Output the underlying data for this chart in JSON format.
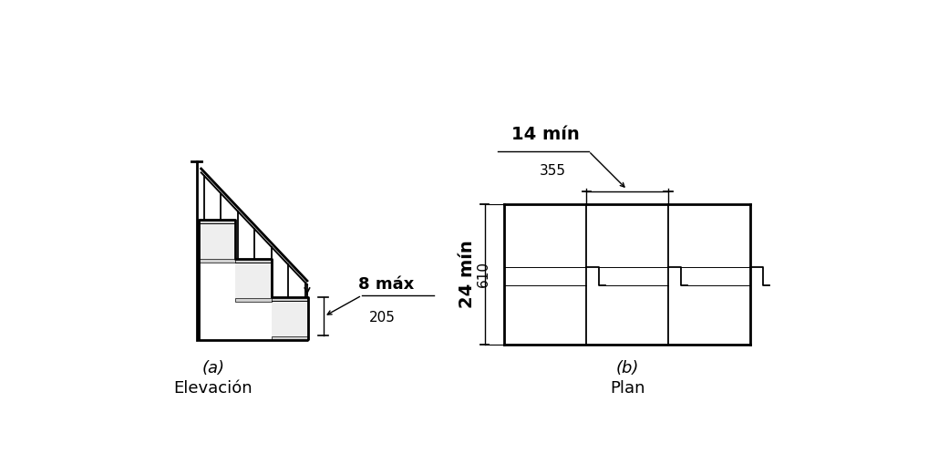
{
  "fig_width": 10.18,
  "fig_height": 5.09,
  "bg_color": "#ffffff",
  "line_color": "#000000",
  "label_a": "(a)",
  "label_b": "(b)",
  "subtitle_a": "Elevación",
  "subtitle_b": "Plan",
  "dim_8max": "8 máx",
  "dim_205": "205",
  "dim_14min": "14 mín",
  "dim_355": "355",
  "dim_24min": "24 mín",
  "dim_610": "610"
}
